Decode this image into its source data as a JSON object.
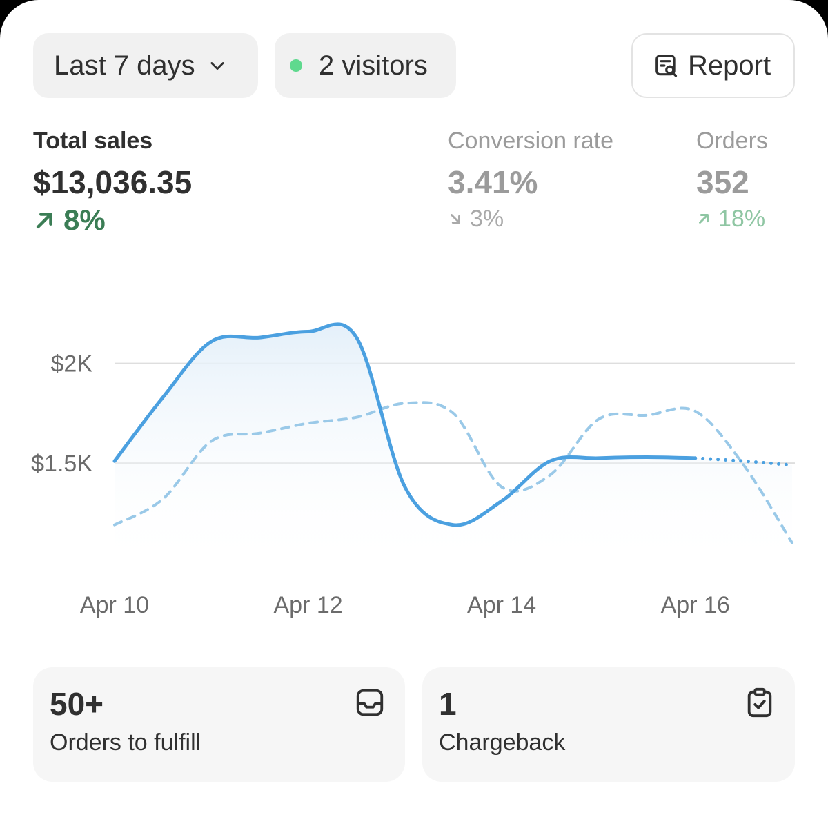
{
  "filters": {
    "date_range": "Last 7 days",
    "visitors": "2 visitors",
    "live_dot_color": "#5fd98e",
    "report_label": "Report"
  },
  "metrics": {
    "total_sales": {
      "label": "Total sales",
      "value": "$13,036.35",
      "change": "8%",
      "direction": "up"
    },
    "conversion_rate": {
      "label": "Conversion rate",
      "value": "3.41%",
      "change": "3%",
      "direction": "down"
    },
    "orders": {
      "label": "Orders",
      "value": "352",
      "change": "18%",
      "direction": "up"
    }
  },
  "chart_data": {
    "type": "line",
    "x_tick_labels": [
      "Apr 10",
      "Apr 12",
      "Apr 14",
      "Apr 16"
    ],
    "y_tick_labels": [
      "$2K",
      "$1.5K"
    ],
    "y_ticks": [
      2000,
      1500
    ],
    "ylim": [
      950,
      2300
    ],
    "x": [
      0,
      0.5,
      1,
      1.5,
      2,
      2.5,
      3,
      3.5,
      4,
      4.5,
      5,
      5.5,
      6,
      6.5,
      7
    ],
    "grid": true,
    "series": [
      {
        "style": "solid",
        "color": "#4ba0e0",
        "projected_from_index": 12,
        "values": [
          1510,
          1830,
          2110,
          2130,
          2160,
          2130,
          1380,
          1190,
          1310,
          1510,
          1525,
          1530,
          1525,
          1510,
          1490
        ]
      },
      {
        "style": "dashed",
        "color": "#9ac9e8",
        "values": [
          1190,
          1320,
          1610,
          1650,
          1700,
          1730,
          1800,
          1750,
          1380,
          1440,
          1720,
          1740,
          1760,
          1490,
          1100
        ]
      }
    ]
  },
  "tiles": [
    {
      "value": "50+",
      "label": "Orders to fulfill",
      "icon": "inbox-icon"
    },
    {
      "value": "1",
      "label": "Chargeback",
      "icon": "clipboard-check-icon"
    }
  ]
}
